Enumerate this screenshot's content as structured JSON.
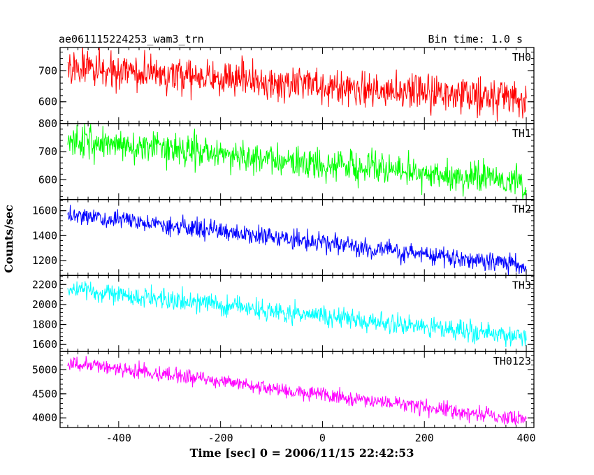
{
  "chart_data": {
    "type": "line",
    "title": "ae061115224253_wam3_trn",
    "subtitle": "Bin time: 1.0 s",
    "xlabel": "Time [sec] 0 = 2006/11/15 22:42:53",
    "ylabel": "Counts/sec",
    "xlim": [
      -515,
      415
    ],
    "x_ticks": [
      -400,
      -200,
      0,
      200,
      400
    ],
    "x_step": 1,
    "grid": false,
    "legend": "none",
    "panels": [
      {
        "name": "TH0",
        "color": "#ff0000",
        "ylim": [
          530,
          775
        ],
        "y_ticks": [
          600,
          700
        ],
        "start_value": 710,
        "end_value": 608,
        "noise": 28,
        "x": [
          -500,
          -400,
          -300,
          -200,
          -100,
          0,
          100,
          200,
          300,
          400
        ],
        "values": [
          710,
          699,
          688,
          676,
          665,
          653,
          642,
          631,
          619,
          608
        ]
      },
      {
        "name": "TH1",
        "color": "#00ff00",
        "ylim": [
          530,
          800
        ],
        "y_ticks": [
          600,
          700,
          800
        ],
        "start_value": 740,
        "end_value": 590,
        "noise": 28,
        "x": [
          -500,
          -400,
          -300,
          -200,
          -100,
          0,
          100,
          200,
          300,
          400
        ],
        "values": [
          740,
          723,
          707,
          690,
          673,
          657,
          640,
          623,
          607,
          590
        ]
      },
      {
        "name": "TH2",
        "color": "#0000ff",
        "ylim": [
          1080,
          1690
        ],
        "y_ticks": [
          1200,
          1400,
          1600
        ],
        "start_value": 1570,
        "end_value": 1160,
        "noise": 38,
        "x": [
          -500,
          -400,
          -300,
          -200,
          -100,
          0,
          100,
          200,
          300,
          400
        ],
        "values": [
          1570,
          1524,
          1479,
          1433,
          1388,
          1342,
          1297,
          1251,
          1206,
          1160
        ]
      },
      {
        "name": "TH3",
        "color": "#00ffff",
        "ylim": [
          1530,
          2290
        ],
        "y_ticks": [
          1600,
          1800,
          2000,
          2200
        ],
        "start_value": 2150,
        "end_value": 1670,
        "noise": 50,
        "x": [
          -500,
          -400,
          -300,
          -200,
          -100,
          0,
          100,
          200,
          300,
          400
        ],
        "values": [
          2150,
          2097,
          2043,
          1990,
          1937,
          1883,
          1830,
          1777,
          1723,
          1670
        ]
      },
      {
        "name": "TH0123",
        "color": "#ff00ff",
        "ylim": [
          3800,
          5380
        ],
        "y_ticks": [
          4000,
          4500,
          5000
        ],
        "start_value": 5150,
        "end_value": 3950,
        "noise": 75,
        "x": [
          -500,
          -400,
          -300,
          -200,
          -100,
          0,
          100,
          200,
          300,
          400
        ],
        "values": [
          5150,
          5017,
          4883,
          4750,
          4617,
          4483,
          4350,
          4217,
          4083,
          3950
        ]
      }
    ]
  }
}
